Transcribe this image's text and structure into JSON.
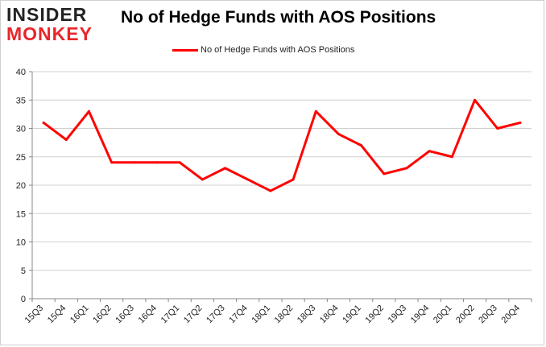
{
  "logo": {
    "line1": "INSIDER",
    "line2": "MONKEY"
  },
  "chart_data": {
    "type": "line",
    "title": "No of Hedge Funds with AOS Positions",
    "xlabel": "",
    "ylabel": "",
    "categories": [
      "15Q3",
      "15Q4",
      "16Q1",
      "16Q2",
      "16Q3",
      "16Q4",
      "17Q1",
      "17Q2",
      "17Q3",
      "17Q4",
      "18Q1",
      "18Q2",
      "18Q3",
      "18Q4",
      "19Q1",
      "19Q2",
      "19Q3",
      "19Q4",
      "20Q1",
      "20Q2",
      "20Q3",
      "20Q4"
    ],
    "series": [
      {
        "name": "No of Hedge Funds with AOS Positions",
        "color": "#ff0000",
        "values": [
          31,
          28,
          33,
          24,
          24,
          24,
          24,
          21,
          23,
          21,
          19,
          21,
          33,
          29,
          27,
          22,
          23,
          26,
          25,
          35,
          30,
          31
        ]
      }
    ],
    "ylim": [
      0,
      40
    ],
    "yticks": [
      0,
      5,
      10,
      15,
      20,
      25,
      30,
      35,
      40
    ],
    "grid": "horizontal",
    "legend_position": "top-center"
  }
}
